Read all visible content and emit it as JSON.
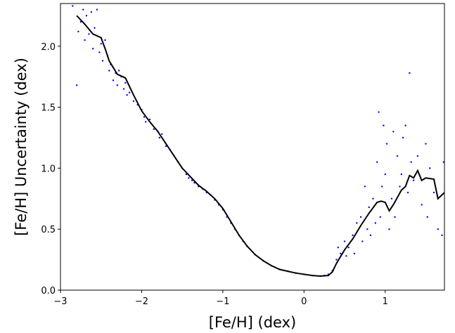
{
  "chart_data": {
    "type": "scatter",
    "x_label": "[Fe/H] (dex)",
    "y_label": "[Fe/H] Uncertainty (dex)",
    "xlim": [
      -3,
      1.73
    ],
    "ylim": [
      0,
      2.35
    ],
    "xticks": [
      {
        "value": -3,
        "label": "−3"
      },
      {
        "value": -2,
        "label": "−2"
      },
      {
        "value": -1,
        "label": "−1"
      },
      0,
      1
    ],
    "yticks": [
      {
        "value": 0,
        "label": "0.0"
      },
      {
        "value": 0.5,
        "label": "0.5"
      },
      {
        "value": 1,
        "label": "1.0"
      },
      {
        "value": 1.5,
        "label": "1.5"
      },
      {
        "value": 2,
        "label": "2.0"
      }
    ],
    "grid": false,
    "series": [
      {
        "type": "scatter",
        "color": "#0000ff",
        "x": [
          -2.85,
          -2.8,
          -2.78,
          -2.75,
          -2.72,
          -2.7,
          -2.68,
          -2.65,
          -2.62,
          -2.6,
          -2.58,
          -2.55,
          -2.52,
          -2.5,
          -2.48,
          -2.45,
          -2.42,
          -2.4,
          -2.38,
          -2.35,
          -2.32,
          -2.3,
          -2.28,
          -2.25,
          -2.22,
          -2.2,
          -2.18,
          -2.15,
          -2.1,
          -2.05,
          -2.0,
          -1.97,
          -1.95,
          -1.9,
          -1.85,
          -1.8,
          -1.78,
          -1.75,
          -1.7,
          -1.65,
          -1.6,
          -1.55,
          -1.5,
          -1.45,
          -1.42,
          -1.38,
          -1.35,
          -1.3,
          -1.25,
          -1.2,
          -1.15,
          -1.1,
          -1.05,
          -1.0,
          -0.95,
          -0.9,
          -0.85,
          -0.8,
          -0.75,
          -0.7,
          -0.6,
          -0.5,
          -0.4,
          -0.3,
          -0.2,
          -0.1,
          0,
          0.1,
          0.2,
          0.25,
          0.3,
          0.35,
          0.4,
          0.42,
          0.45,
          0.5,
          0.52,
          0.55,
          0.6,
          0.62,
          0.65,
          0.7,
          0.72,
          0.75,
          0.78,
          0.8,
          0.82,
          0.85,
          0.88,
          0.9,
          0.92,
          0.94,
          0.96,
          0.98,
          1.0,
          1.02,
          1.05,
          1.08,
          1.1,
          1.12,
          1.15,
          1.18,
          1.2,
          1.22,
          1.25,
          1.28,
          1.3,
          1.32,
          1.35,
          1.4,
          1.45,
          1.5,
          1.52,
          1.55,
          1.6,
          1.65,
          1.7,
          1.72
        ],
        "values": [
          2.33,
          1.68,
          2.12,
          2.2,
          2.3,
          2.05,
          2.25,
          2.1,
          2.28,
          1.98,
          2.15,
          2.3,
          1.95,
          2.02,
          1.88,
          2.05,
          1.92,
          1.8,
          1.85,
          1.72,
          1.78,
          1.68,
          1.8,
          1.75,
          1.65,
          1.7,
          1.6,
          1.62,
          1.55,
          1.52,
          1.48,
          1.42,
          1.38,
          1.4,
          1.32,
          1.3,
          1.25,
          1.28,
          1.18,
          1.15,
          1.1,
          1.05,
          1.0,
          0.95,
          0.92,
          0.9,
          0.88,
          0.85,
          0.83,
          0.8,
          0.78,
          0.74,
          0.7,
          0.66,
          0.6,
          0.55,
          0.5,
          0.45,
          0.4,
          0.36,
          0.29,
          0.24,
          0.2,
          0.17,
          0.155,
          0.14,
          0.13,
          0.12,
          0.115,
          0.12,
          0.13,
          0.16,
          0.25,
          0.35,
          0.3,
          0.4,
          0.28,
          0.35,
          0.45,
          0.3,
          0.55,
          0.6,
          0.4,
          0.85,
          0.5,
          0.68,
          0.45,
          0.75,
          0.55,
          1.05,
          1.46,
          0.6,
          0.85,
          1.35,
          0.95,
          1.2,
          0.5,
          0.75,
          1.3,
          0.6,
          1.1,
          0.85,
          0.95,
          1.25,
          1.35,
          0.8,
          1.78,
          1.05,
          0.9,
          1.1,
          0.7,
          1.2,
          0.6,
          1.0,
          0.8,
          0.5,
          0.45,
          1.05
        ]
      },
      {
        "type": "line",
        "color": "#000000",
        "x": [
          -2.8,
          -2.7,
          -2.6,
          -2.5,
          -2.45,
          -2.4,
          -2.3,
          -2.2,
          -2.1,
          -2.0,
          -1.9,
          -1.8,
          -1.7,
          -1.6,
          -1.5,
          -1.4,
          -1.3,
          -1.2,
          -1.1,
          -1.0,
          -0.9,
          -0.8,
          -0.7,
          -0.6,
          -0.5,
          -0.4,
          -0.3,
          -0.2,
          -0.1,
          0,
          0.1,
          0.2,
          0.3,
          0.35,
          0.4,
          0.5,
          0.6,
          0.7,
          0.8,
          0.9,
          0.95,
          1.0,
          1.05,
          1.1,
          1.2,
          1.25,
          1.3,
          1.35,
          1.4,
          1.45,
          1.5,
          1.6,
          1.65,
          1.73
        ],
        "values": [
          2.25,
          2.18,
          2.1,
          2.07,
          1.98,
          1.88,
          1.77,
          1.74,
          1.6,
          1.47,
          1.38,
          1.3,
          1.2,
          1.1,
          1.0,
          0.93,
          0.86,
          0.81,
          0.75,
          0.67,
          0.56,
          0.45,
          0.36,
          0.29,
          0.24,
          0.2,
          0.17,
          0.155,
          0.14,
          0.13,
          0.12,
          0.115,
          0.12,
          0.15,
          0.22,
          0.33,
          0.42,
          0.53,
          0.63,
          0.72,
          0.73,
          0.72,
          0.65,
          0.7,
          0.82,
          0.85,
          0.94,
          0.92,
          0.98,
          0.9,
          0.92,
          0.91,
          0.75,
          0.8
        ]
      }
    ]
  }
}
